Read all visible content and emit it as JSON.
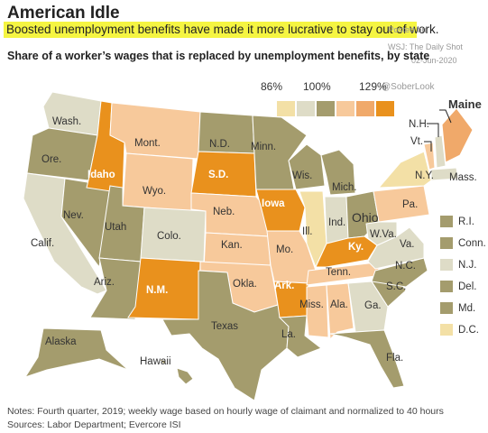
{
  "header": {
    "title": "American Idle",
    "subtitle": "Boosted unemployment benefits have made it more lucrative to stay out of work.",
    "posted": "Posted on",
    "source_credit": "WSJ: The Daily Shot",
    "date": "02-Jun-2020",
    "handle": "@SoberLook",
    "map_title": "Share of a worker’s wages that is replaced by unemployment benefits, by state"
  },
  "colors": {
    "lightest": "#f3e0a6",
    "light_olive": "#c9c09a",
    "olive": "#a49c6d",
    "light_orange": "#f7c99b",
    "mid_orange": "#f0a96a",
    "dark_orange": "#e9911d",
    "pale_gray": "#dedcc7"
  },
  "legend": {
    "ticks": [
      "86%",
      "100%",
      "129%"
    ],
    "scale_colors": [
      "#f3e0a6",
      "#dedcc7",
      "#a49c6d",
      "#f7c99b",
      "#f0a96a",
      "#e9911d"
    ]
  },
  "states": {
    "wash": "Wash.",
    "ore": "Ore.",
    "calif": "Calif.",
    "nev": "Nev.",
    "idaho": "Idaho",
    "mont": "Mont.",
    "wyo": "Wyo.",
    "utah": "Utah",
    "ariz": "Ariz.",
    "colo": "Colo.",
    "nm": "N.M.",
    "nd": "N.D.",
    "sd": "S.D.",
    "neb": "Neb.",
    "kan": "Kan.",
    "okla": "Okla.",
    "texas": "Texas",
    "minn": "Minn.",
    "iowa": "Iowa",
    "mo": "Mo.",
    "ark": "Ark.",
    "la": "La.",
    "wis": "Wis.",
    "ill": "Ill.",
    "mich": "Mich.",
    "ind": "Ind.",
    "ohio": "Ohio",
    "ky": "Ky.",
    "tenn": "Tenn.",
    "miss": "Miss.",
    "ala": "Ala.",
    "ga": "Ga.",
    "fla": "Fla.",
    "sc": "S.C.",
    "nc": "N.C.",
    "va": "Va.",
    "wva": "W.Va.",
    "pa": "Pa.",
    "ny": "N.Y.",
    "vt": "Vt.",
    "nh": "N.H.",
    "maine": "Maine",
    "mass": "Mass.",
    "alaska": "Alaska",
    "hawaii": "Hawaii"
  },
  "mini_legend": [
    {
      "label": "R.I.",
      "color": "#a49c6d"
    },
    {
      "label": "Conn.",
      "color": "#a49c6d"
    },
    {
      "label": "N.J.",
      "color": "#dedcc7"
    },
    {
      "label": "Del.",
      "color": "#a49c6d"
    },
    {
      "label": "Md.",
      "color": "#a49c6d"
    },
    {
      "label": "D.C.",
      "color": "#f3e0a6"
    }
  ],
  "footer": {
    "notes": "Notes: Fourth quarter, 2019; weekly wage based on hourly wage of claimant and normalized to 40 hours",
    "sources": "Sources: Labor Department;  Evercore ISI"
  }
}
